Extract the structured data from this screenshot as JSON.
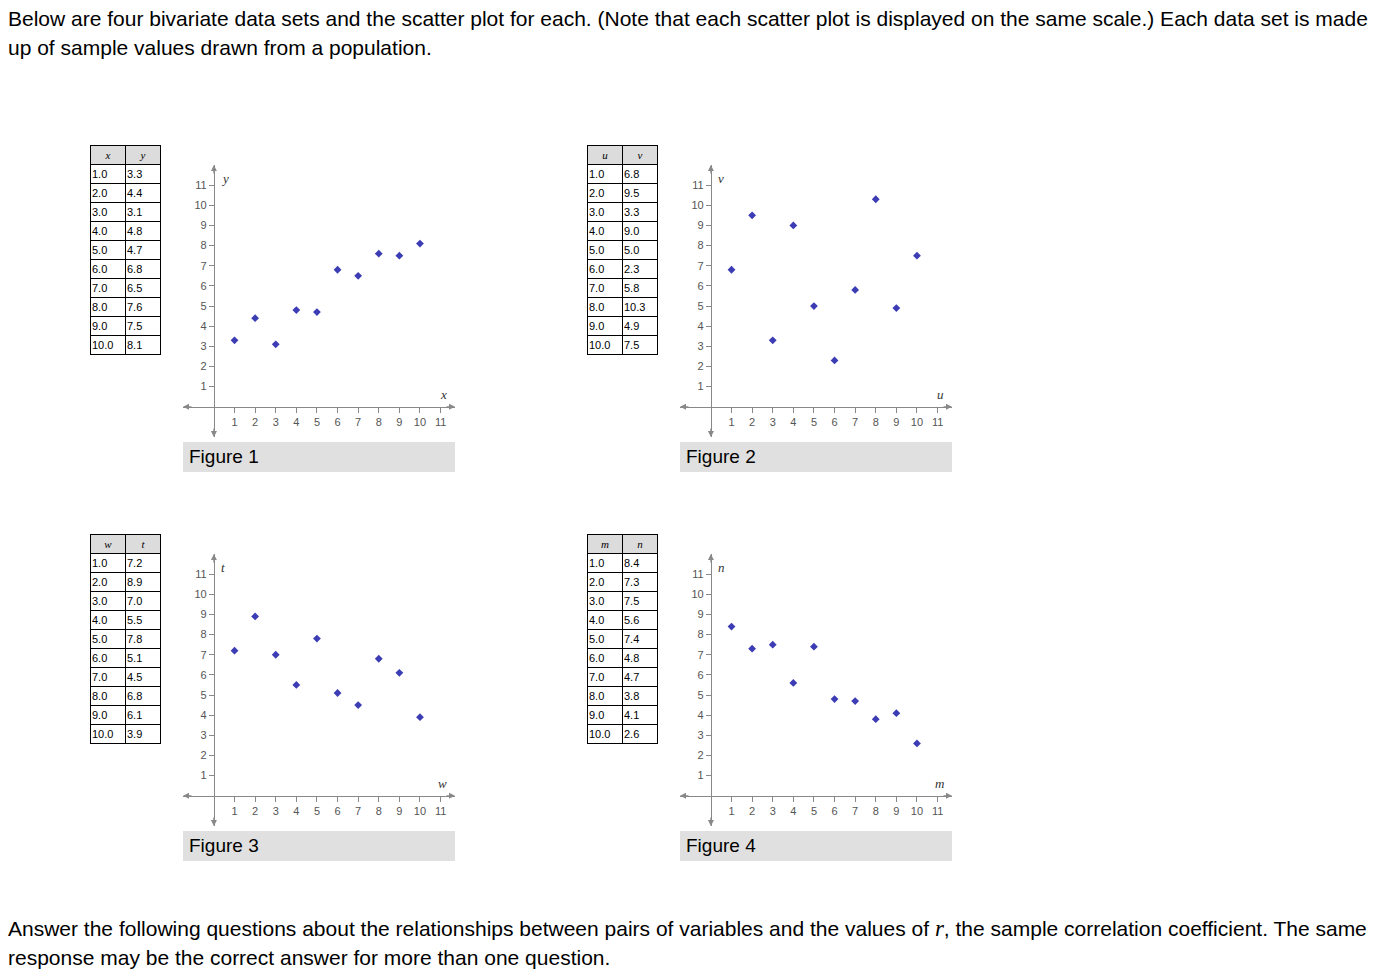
{
  "intro": "Below are four bivariate data sets and the scatter plot for each. (Note that each scatter plot is displayed on the same scale.) Each data set is made up of sample values drawn from a population.",
  "tables": [
    {
      "header": [
        "x",
        "y"
      ],
      "rows": [
        [
          "1.0",
          "3.3"
        ],
        [
          "2.0",
          "4.4"
        ],
        [
          "3.0",
          "3.1"
        ],
        [
          "4.0",
          "4.8"
        ],
        [
          "5.0",
          "4.7"
        ],
        [
          "6.0",
          "6.8"
        ],
        [
          "7.0",
          "6.5"
        ],
        [
          "8.0",
          "7.6"
        ],
        [
          "9.0",
          "7.5"
        ],
        [
          "10.0",
          "8.1"
        ]
      ]
    },
    {
      "header": [
        "u",
        "v"
      ],
      "rows": [
        [
          "1.0",
          "6.8"
        ],
        [
          "2.0",
          "9.5"
        ],
        [
          "3.0",
          "3.3"
        ],
        [
          "4.0",
          "9.0"
        ],
        [
          "5.0",
          "5.0"
        ],
        [
          "6.0",
          "2.3"
        ],
        [
          "7.0",
          "5.8"
        ],
        [
          "8.0",
          "10.3"
        ],
        [
          "9.0",
          "4.9"
        ],
        [
          "10.0",
          "7.5"
        ]
      ]
    },
    {
      "header": [
        "w",
        "t"
      ],
      "rows": [
        [
          "1.0",
          "7.2"
        ],
        [
          "2.0",
          "8.9"
        ],
        [
          "3.0",
          "7.0"
        ],
        [
          "4.0",
          "5.5"
        ],
        [
          "5.0",
          "7.8"
        ],
        [
          "6.0",
          "5.1"
        ],
        [
          "7.0",
          "4.5"
        ],
        [
          "8.0",
          "6.8"
        ],
        [
          "9.0",
          "6.1"
        ],
        [
          "10.0",
          "3.9"
        ]
      ]
    },
    {
      "header": [
        "m",
        "n"
      ],
      "rows": [
        [
          "1.0",
          "8.4"
        ],
        [
          "2.0",
          "7.3"
        ],
        [
          "3.0",
          "7.5"
        ],
        [
          "4.0",
          "5.6"
        ],
        [
          "5.0",
          "7.4"
        ],
        [
          "6.0",
          "4.8"
        ],
        [
          "7.0",
          "4.7"
        ],
        [
          "8.0",
          "3.8"
        ],
        [
          "9.0",
          "4.1"
        ],
        [
          "10.0",
          "2.6"
        ]
      ]
    }
  ],
  "chart_data": [
    {
      "type": "scatter",
      "title": "Figure 1",
      "xlabel": "x",
      "ylabel": "y",
      "x": [
        1,
        2,
        3,
        4,
        5,
        6,
        7,
        8,
        9,
        10
      ],
      "values": [
        3.3,
        4.4,
        3.1,
        4.8,
        4.7,
        6.8,
        6.5,
        7.6,
        7.5,
        8.1
      ],
      "xlim": [
        -1.5,
        11.7
      ],
      "ylim": [
        -1.5,
        12
      ],
      "xticks": [
        1,
        2,
        3,
        4,
        5,
        6,
        7,
        8,
        9,
        10,
        11
      ],
      "yticks": [
        1,
        2,
        3,
        4,
        5,
        6,
        7,
        8,
        9,
        10,
        11
      ],
      "color": "#3c3cb4",
      "marker": "diamond",
      "grid": false
    },
    {
      "type": "scatter",
      "title": "Figure 2",
      "xlabel": "u",
      "ylabel": "v",
      "x": [
        1,
        2,
        3,
        4,
        5,
        6,
        7,
        8,
        9,
        10
      ],
      "values": [
        6.8,
        9.5,
        3.3,
        9.0,
        5.0,
        2.3,
        5.8,
        10.3,
        4.9,
        7.5
      ],
      "xlim": [
        -1.5,
        11.7
      ],
      "ylim": [
        -1.5,
        12
      ],
      "xticks": [
        1,
        2,
        3,
        4,
        5,
        6,
        7,
        8,
        9,
        10,
        11
      ],
      "yticks": [
        1,
        2,
        3,
        4,
        5,
        6,
        7,
        8,
        9,
        10,
        11
      ],
      "color": "#3c3cb4",
      "marker": "diamond",
      "grid": false
    },
    {
      "type": "scatter",
      "title": "Figure 3",
      "xlabel": "w",
      "ylabel": "t",
      "x": [
        1,
        2,
        3,
        4,
        5,
        6,
        7,
        8,
        9,
        10
      ],
      "values": [
        7.2,
        8.9,
        7.0,
        5.5,
        7.8,
        5.1,
        4.5,
        6.8,
        6.1,
        3.9
      ],
      "xlim": [
        -1.5,
        11.7
      ],
      "ylim": [
        -1.5,
        12
      ],
      "xticks": [
        1,
        2,
        3,
        4,
        5,
        6,
        7,
        8,
        9,
        10,
        11
      ],
      "yticks": [
        1,
        2,
        3,
        4,
        5,
        6,
        7,
        8,
        9,
        10,
        11
      ],
      "color": "#3c3cb4",
      "marker": "diamond",
      "grid": false
    },
    {
      "type": "scatter",
      "title": "Figure 4",
      "xlabel": "m",
      "ylabel": "n",
      "x": [
        1,
        2,
        3,
        4,
        5,
        6,
        7,
        8,
        9,
        10
      ],
      "values": [
        8.4,
        7.3,
        7.5,
        5.6,
        7.4,
        4.8,
        4.7,
        3.8,
        4.1,
        2.6
      ],
      "xlim": [
        -1.5,
        11.7
      ],
      "ylim": [
        -1.5,
        12
      ],
      "xticks": [
        1,
        2,
        3,
        4,
        5,
        6,
        7,
        8,
        9,
        10,
        11
      ],
      "yticks": [
        1,
        2,
        3,
        4,
        5,
        6,
        7,
        8,
        9,
        10,
        11
      ],
      "color": "#3c3cb4",
      "marker": "diamond",
      "grid": false
    }
  ],
  "footer": {
    "before": "Answer the following questions about the relationships between pairs of variables and the values of ",
    "italic": "r",
    "after": ", the sample correlation coefficient. The same response may be the correct answer for more than one question."
  }
}
